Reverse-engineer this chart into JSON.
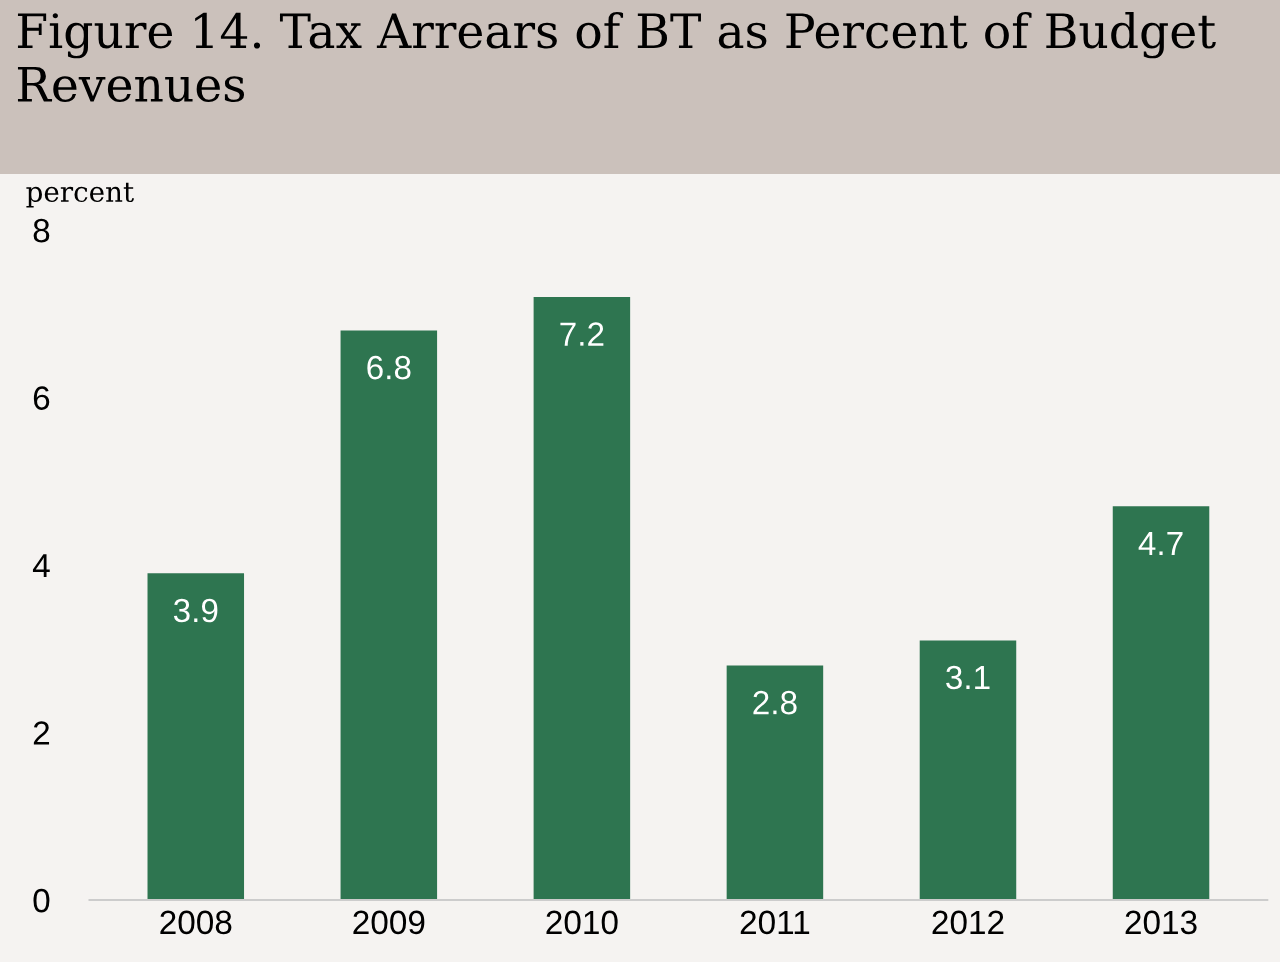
{
  "chart_data": {
    "type": "bar",
    "title": "Figure 14. Tax Arrears of BT as Percent of Budget Revenues",
    "ylabel": "percent",
    "categories": [
      "2008",
      "2009",
      "2010",
      "2011",
      "2012",
      "2013"
    ],
    "values": [
      3.9,
      6.8,
      7.2,
      2.8,
      3.1,
      4.7
    ],
    "color": "#2e7550",
    "ylim": [
      0,
      8
    ],
    "yticks": [
      0,
      2,
      4,
      6,
      8
    ],
    "grid": false,
    "data_labels": true
  }
}
